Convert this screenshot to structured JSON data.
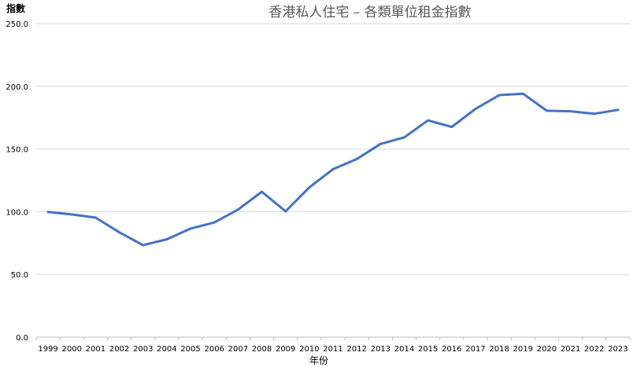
{
  "chart_data": {
    "type": "line",
    "title": "香港私人住宅 – 各類單位租金指數",
    "xlabel": "年份",
    "ylabel": "指數",
    "ylim": [
      0,
      250
    ],
    "yticks": [
      "0.0",
      "50.0",
      "100.0",
      "150.0",
      "200.0",
      "250.0"
    ],
    "grid": true,
    "legend": "none",
    "categories": [
      "1999",
      "2000",
      "2001",
      "2002",
      "2003",
      "2004",
      "2005",
      "2006",
      "2007",
      "2008",
      "2009",
      "2010",
      "2011",
      "2012",
      "2013",
      "2014",
      "2015",
      "2016",
      "2017",
      "2018",
      "2019",
      "2020",
      "2021",
      "2022",
      "2023"
    ],
    "series": [
      {
        "color": "#4472c4",
        "values": [
          99.8,
          97.8,
          95.3,
          83.5,
          73.4,
          78.0,
          86.5,
          91.4,
          101.7,
          115.9,
          100.3,
          119.3,
          133.9,
          142.0,
          154.0,
          159.3,
          172.8,
          167.6,
          182.0,
          192.9,
          194.1,
          180.5,
          180.1,
          178.1,
          181.2
        ]
      }
    ]
  }
}
